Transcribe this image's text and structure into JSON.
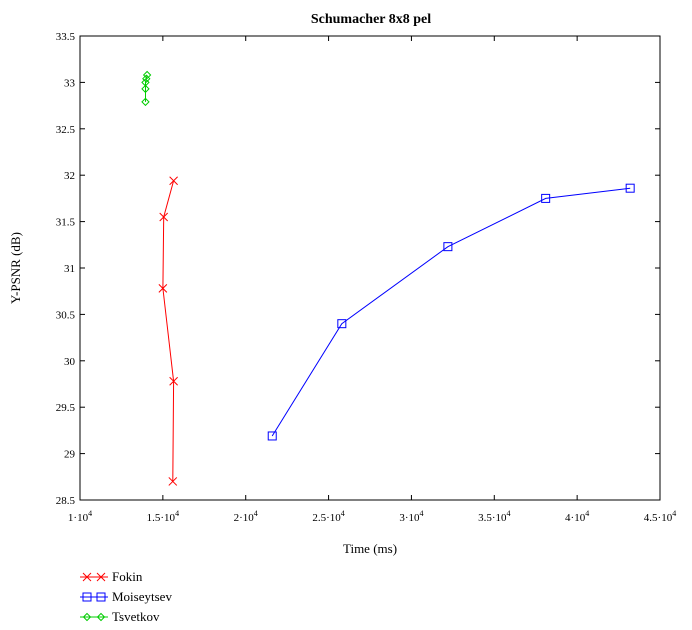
{
  "chart_data": {
    "type": "line",
    "title": "Schumacher 8x8 pel",
    "xlabel": "Time (ms)",
    "ylabel": "Y-PSNR (dB)",
    "xlim": [
      10000,
      45000
    ],
    "ylim": [
      28.5,
      33.5
    ],
    "x_ticks": [
      {
        "value": 10000,
        "mant": "1",
        "exp": "4"
      },
      {
        "value": 15000,
        "mant": "1.5",
        "exp": "4"
      },
      {
        "value": 20000,
        "mant": "2",
        "exp": "4"
      },
      {
        "value": 25000,
        "mant": "2.5",
        "exp": "4"
      },
      {
        "value": 30000,
        "mant": "3",
        "exp": "4"
      },
      {
        "value": 35000,
        "mant": "3.5",
        "exp": "4"
      },
      {
        "value": 40000,
        "mant": "4",
        "exp": "4"
      },
      {
        "value": 45000,
        "mant": "4.5",
        "exp": "4"
      }
    ],
    "y_ticks": [
      "28.5",
      "29",
      "29.5",
      "30",
      "30.5",
      "31",
      "31.5",
      "32",
      "32.5",
      "33",
      "33.5"
    ],
    "grid": false,
    "legend_position": "bottom-left",
    "series": [
      {
        "name": "Fokin",
        "color": "#ff0000",
        "marker": "x",
        "points": [
          [
            15600,
            28.7
          ],
          [
            15650,
            29.78
          ],
          [
            15000,
            30.78
          ],
          [
            15050,
            31.55
          ],
          [
            15650,
            31.94
          ]
        ]
      },
      {
        "name": "Moiseytsev",
        "color": "#0000ff",
        "marker": "square",
        "points": [
          [
            21600,
            29.19
          ],
          [
            25800,
            30.4
          ],
          [
            32200,
            31.23
          ],
          [
            38100,
            31.75
          ],
          [
            43200,
            31.86
          ]
        ]
      },
      {
        "name": "Tsvetkov",
        "color": "#00cc00",
        "marker": "diamond",
        "points": [
          [
            13950,
            32.79
          ],
          [
            13950,
            32.93
          ],
          [
            13950,
            33.0
          ],
          [
            14000,
            33.04
          ],
          [
            14050,
            33.08
          ]
        ]
      }
    ]
  }
}
